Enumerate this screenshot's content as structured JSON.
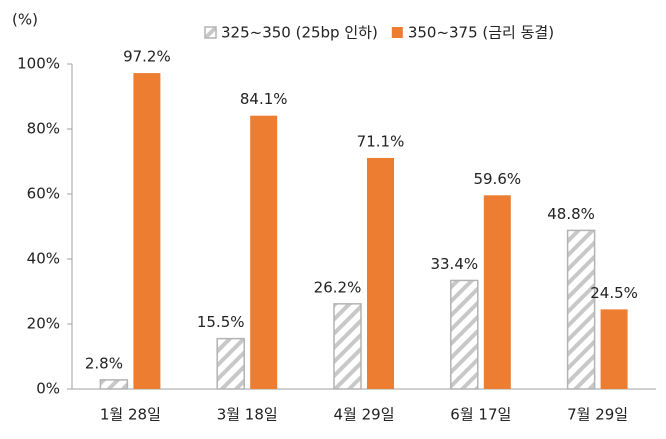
{
  "chart_data": {
    "type": "bar",
    "y_unit_label": "(%)",
    "categories": [
      "1월 28일",
      "3월 18일",
      "4월 29일",
      "6월 17일",
      "7월 29일"
    ],
    "series": [
      {
        "name": "325~350 (25bp 인하)",
        "color": "#b3b3b3",
        "pattern": "hatch",
        "values": [
          2.8,
          15.5,
          26.2,
          33.4,
          48.8
        ],
        "value_labels": [
          "2.8%",
          "15.5%",
          "26.2%",
          "33.4%",
          "48.8%"
        ]
      },
      {
        "name": "350~375 (금리 동결)",
        "color": "#ed7d31",
        "values": [
          97.2,
          84.1,
          71.1,
          59.6,
          24.5
        ],
        "value_labels": [
          "97.2%",
          "84.1%",
          "71.1%",
          "59.6%",
          "24.5%"
        ]
      }
    ],
    "ylim": [
      0,
      100
    ],
    "yticks": [
      {
        "value": 0,
        "label": "0%"
      },
      {
        "value": 20,
        "label": "20%"
      },
      {
        "value": 40,
        "label": "40%"
      },
      {
        "value": 60,
        "label": "60%"
      },
      {
        "value": 80,
        "label": "80%"
      },
      {
        "value": 100,
        "label": "100%"
      }
    ],
    "grid": false,
    "legend": "top"
  }
}
